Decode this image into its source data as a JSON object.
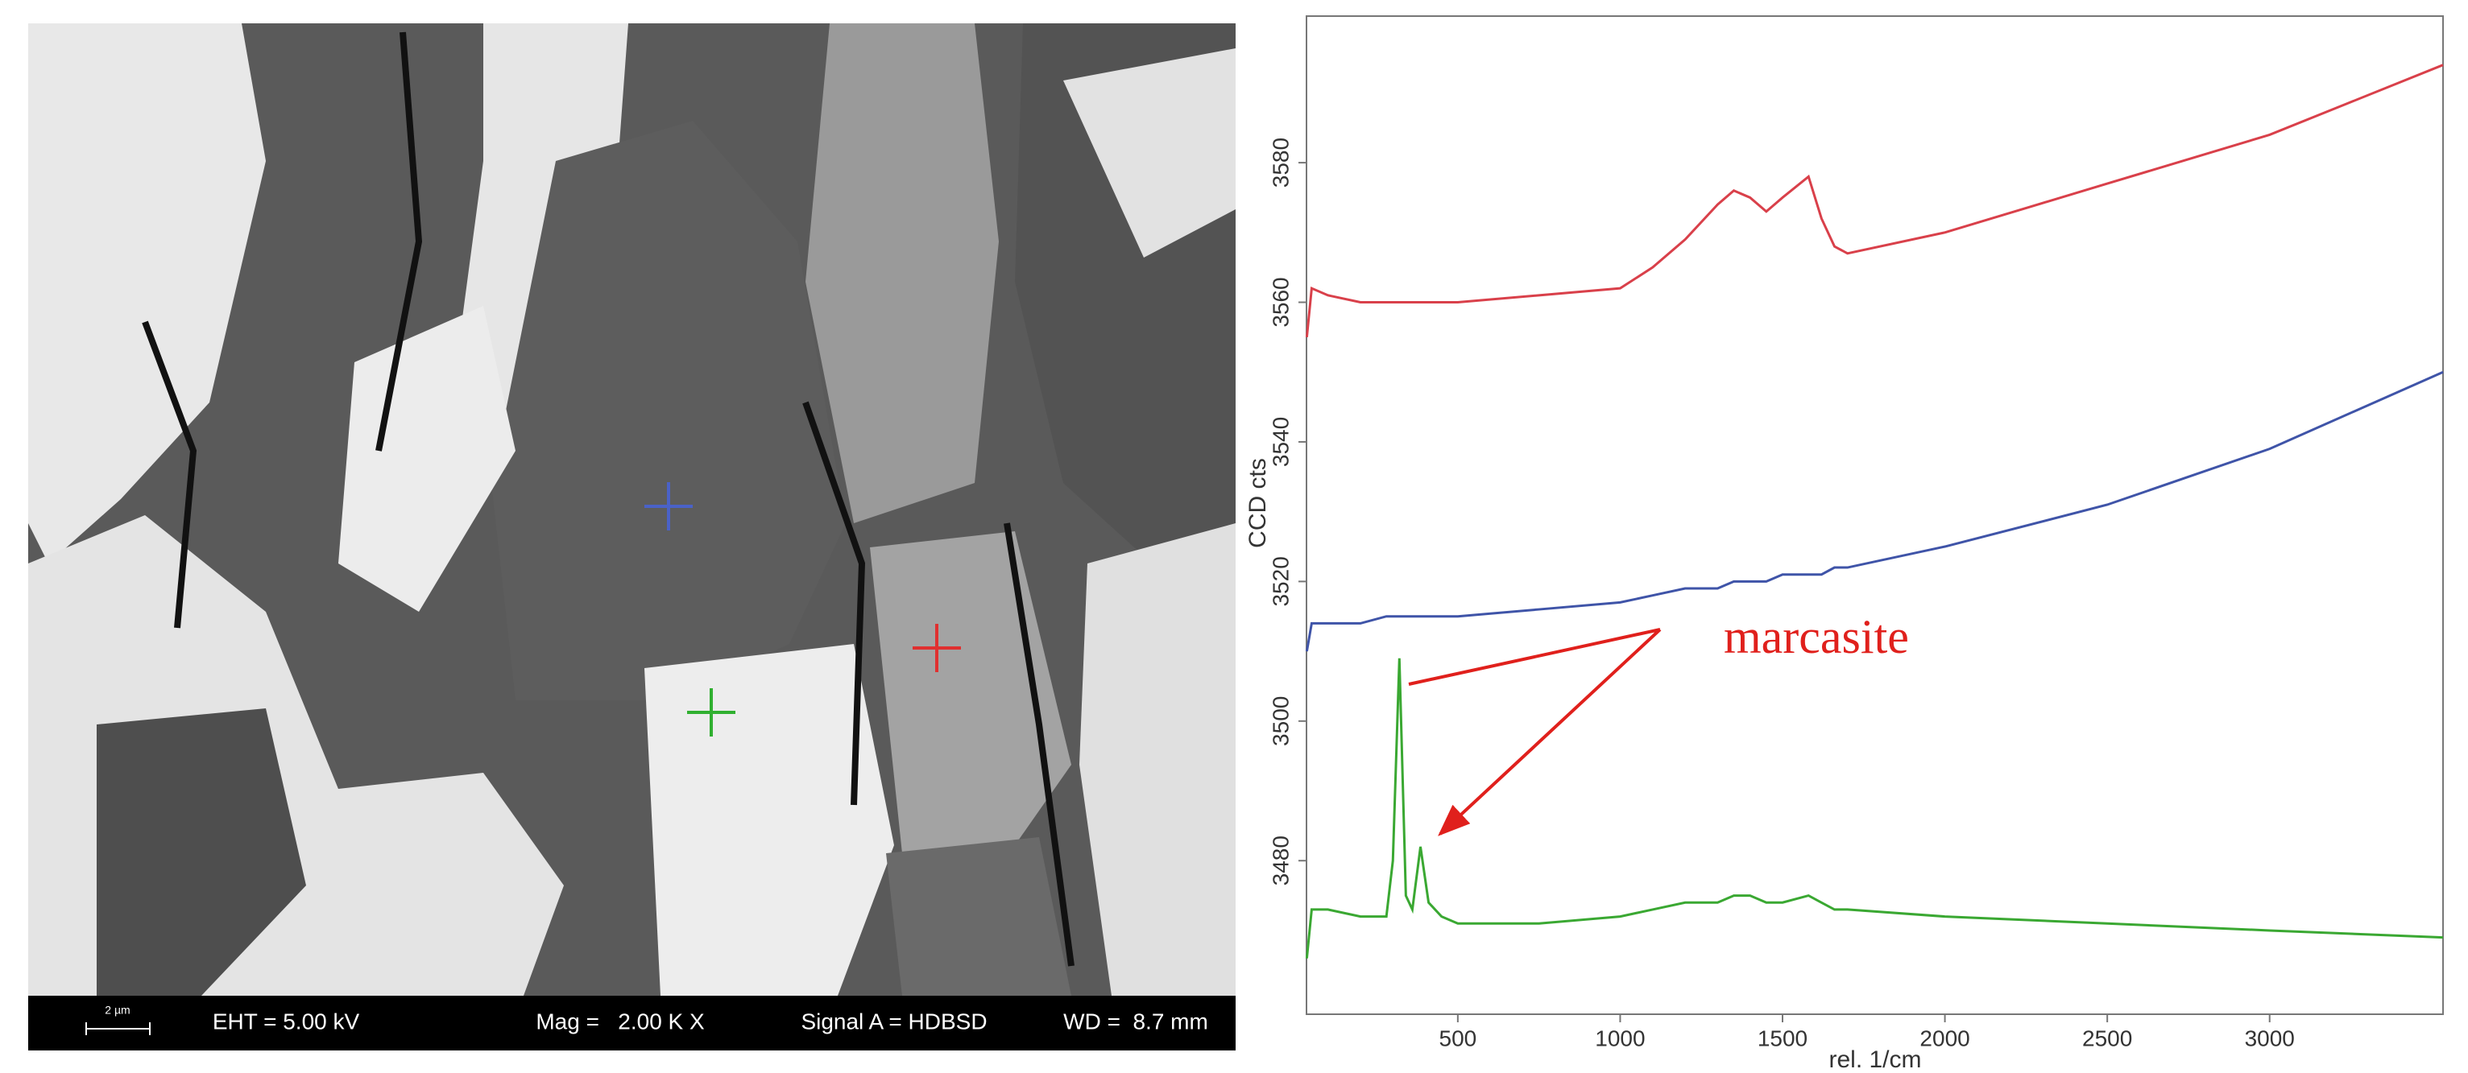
{
  "sem_image": {
    "scale_bar": "2 µm",
    "eht": "EHT = 5.00 kV",
    "mag": "Mag =   2.00 K X",
    "signal": "Signal A = HDBSD",
    "wd": "WD =  8.7 mm"
  },
  "chart_data": {
    "type": "line",
    "x_label": "rel. 1/cm",
    "y_label": "CCD cts",
    "annotation": "marcasite",
    "x": [
      35,
      50,
      100,
      200,
      280,
      300,
      320,
      340,
      360,
      385,
      410,
      450,
      500,
      750,
      1000,
      1100,
      1200,
      1300,
      1350,
      1400,
      1450,
      1500,
      1580,
      1620,
      1660,
      1700,
      2000,
      2500,
      3000,
      3534
    ],
    "series": [
      {
        "color": "#d9404a",
        "values": [
          3555,
          3562,
          3561,
          3560,
          3560,
          3560,
          3560,
          3560,
          3560,
          3560,
          3560,
          3560,
          3560,
          3561,
          3562,
          3565,
          3569,
          3574,
          3576,
          3575,
          3573,
          3575,
          3578,
          3572,
          3568,
          3567,
          3570,
          3577,
          3584,
          3594
        ]
      },
      {
        "color": "#3f54a8",
        "values": [
          3510,
          3514,
          3514,
          3514,
          3515,
          3515,
          3515,
          3515,
          3515,
          3515,
          3515,
          3515,
          3515,
          3516,
          3517,
          3518,
          3519,
          3519,
          3520,
          3520,
          3520,
          3521,
          3521,
          3521,
          3522,
          3522,
          3525,
          3531,
          3539,
          3550
        ]
      },
      {
        "color": "#3aa832",
        "values": [
          3466,
          3473,
          3473,
          3472,
          3472,
          3480,
          3509,
          3475,
          3473,
          3482,
          3474,
          3472,
          3471,
          3471,
          3472,
          3473,
          3474,
          3474,
          3475,
          3475,
          3474,
          3474,
          3475,
          3474,
          3473,
          3473,
          3472,
          3471,
          3470,
          3469
        ]
      }
    ],
    "xlim": [
      34,
      3534
    ],
    "xticks": [
      500,
      1000,
      1500,
      2000,
      2500,
      3000
    ],
    "ylim": [
      3458,
      3601
    ],
    "yticks": [
      3480,
      3500,
      3520,
      3540,
      3560,
      3580
    ],
    "annotation_color": "#e0201c"
  }
}
